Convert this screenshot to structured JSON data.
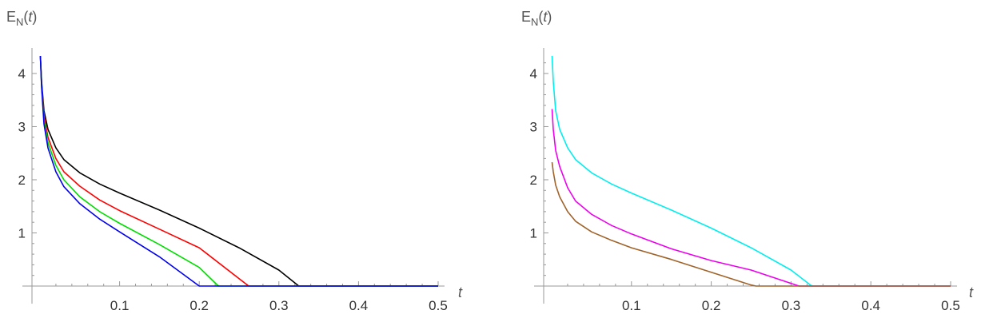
{
  "chart_data": [
    {
      "type": "line",
      "title": "",
      "ylabel": {
        "main": "E",
        "sub": "N",
        "suffix": "(t)"
      },
      "xlabel": "t",
      "xlim": [
        0,
        0.5
      ],
      "ylim": [
        0,
        4.3
      ],
      "xticks": [
        "0.1",
        "0.2",
        "0.3",
        "0.4",
        "0.5"
      ],
      "yticks": [
        "1",
        "2",
        "3",
        "4"
      ],
      "grid": false,
      "series": [
        {
          "color": "#000000",
          "x": [
            0.0005,
            0.002,
            0.005,
            0.01,
            0.02,
            0.03,
            0.05,
            0.075,
            0.1,
            0.15,
            0.2,
            0.25,
            0.3,
            0.325,
            0.5
          ],
          "y": [
            4.33,
            3.85,
            3.3,
            2.95,
            2.6,
            2.38,
            2.13,
            1.92,
            1.75,
            1.43,
            1.09,
            0.72,
            0.3,
            0.0,
            0.0
          ]
        },
        {
          "color": "#ff0000",
          "x": [
            0.0005,
            0.002,
            0.005,
            0.01,
            0.02,
            0.03,
            0.05,
            0.075,
            0.1,
            0.15,
            0.2,
            0.262,
            0.5
          ],
          "y": [
            4.33,
            3.8,
            3.2,
            2.8,
            2.4,
            2.15,
            1.88,
            1.62,
            1.42,
            1.07,
            0.72,
            0.0,
            0.0
          ]
        },
        {
          "color": "#00dd00",
          "x": [
            0.0005,
            0.002,
            0.005,
            0.01,
            0.02,
            0.03,
            0.05,
            0.075,
            0.1,
            0.15,
            0.2,
            0.224,
            0.5
          ],
          "y": [
            4.33,
            3.78,
            3.12,
            2.7,
            2.27,
            2.0,
            1.68,
            1.4,
            1.18,
            0.78,
            0.35,
            0.0,
            0.0
          ]
        },
        {
          "color": "#0000ee",
          "x": [
            0.0005,
            0.002,
            0.005,
            0.01,
            0.02,
            0.03,
            0.05,
            0.075,
            0.1,
            0.15,
            0.2,
            0.5
          ],
          "y": [
            4.33,
            3.75,
            3.05,
            2.6,
            2.15,
            1.87,
            1.55,
            1.26,
            1.02,
            0.55,
            0.0,
            0.0
          ]
        }
      ]
    },
    {
      "type": "line",
      "title": "",
      "ylabel": {
        "main": "E",
        "sub": "N",
        "suffix": "(t)"
      },
      "xlabel": "t",
      "xlim": [
        0,
        0.5
      ],
      "ylim": [
        0,
        4.3
      ],
      "xticks": [
        "0.1",
        "0.2",
        "0.3",
        "0.4",
        "0.5"
      ],
      "yticks": [
        "1",
        "2",
        "3",
        "4"
      ],
      "grid": false,
      "series": [
        {
          "color": "#00eeee",
          "x": [
            0.0005,
            0.002,
            0.005,
            0.01,
            0.02,
            0.03,
            0.05,
            0.075,
            0.1,
            0.15,
            0.2,
            0.25,
            0.3,
            0.326,
            0.5
          ],
          "y": [
            4.33,
            3.85,
            3.3,
            2.95,
            2.6,
            2.38,
            2.13,
            1.92,
            1.75,
            1.43,
            1.09,
            0.72,
            0.3,
            0.0,
            0.0
          ]
        },
        {
          "color": "#ee00ee",
          "x": [
            0.0005,
            0.002,
            0.005,
            0.01,
            0.02,
            0.03,
            0.05,
            0.075,
            0.1,
            0.15,
            0.2,
            0.25,
            0.31,
            0.5
          ],
          "y": [
            3.33,
            2.95,
            2.55,
            2.25,
            1.85,
            1.6,
            1.35,
            1.14,
            0.98,
            0.7,
            0.48,
            0.3,
            0.0,
            0.0
          ]
        },
        {
          "color": "#a0632a",
          "x": [
            0.0005,
            0.002,
            0.005,
            0.01,
            0.02,
            0.03,
            0.05,
            0.075,
            0.1,
            0.15,
            0.2,
            0.25,
            0.256,
            0.5
          ],
          "y": [
            2.33,
            2.15,
            1.9,
            1.68,
            1.4,
            1.22,
            1.02,
            0.86,
            0.72,
            0.5,
            0.26,
            0.02,
            0.0,
            0.0
          ]
        }
      ]
    }
  ]
}
